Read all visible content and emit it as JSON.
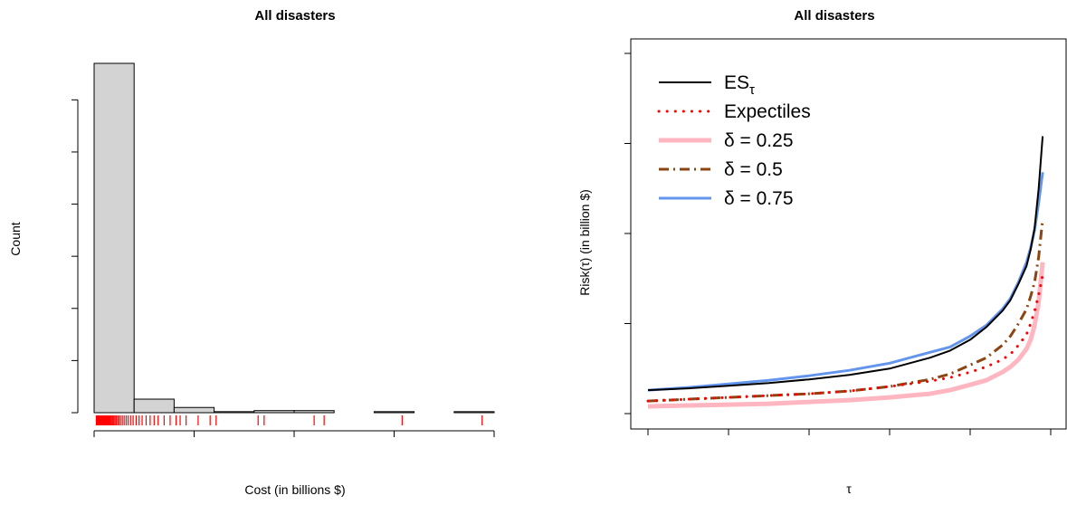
{
  "chart_data": [
    {
      "type": "bar",
      "title": "All disasters",
      "xlabel": "Cost (in billions $)",
      "ylabel": "Count",
      "xlim": [
        0,
        200
      ],
      "ylim": [
        0,
        335
      ],
      "x_ticks": [
        "0",
        "50",
        "100",
        "150",
        "200"
      ],
      "y_ticks": [
        "0",
        "50",
        "100",
        "150",
        "200",
        "250",
        "300"
      ],
      "bins": [
        {
          "from": 0,
          "to": 20,
          "count": 335
        },
        {
          "from": 20,
          "to": 40,
          "count": 13
        },
        {
          "from": 40,
          "to": 60,
          "count": 5
        },
        {
          "from": 60,
          "to": 80,
          "count": 1
        },
        {
          "from": 80,
          "to": 100,
          "count": 2
        },
        {
          "from": 100,
          "to": 120,
          "count": 2
        },
        {
          "from": 120,
          "to": 140,
          "count": 0
        },
        {
          "from": 140,
          "to": 160,
          "count": 1
        },
        {
          "from": 160,
          "to": 180,
          "count": 0
        },
        {
          "from": 180,
          "to": 200,
          "count": 1
        }
      ],
      "bar_color": "#d3d3d3",
      "rug_color": "#ff0000",
      "rug": [
        1.1,
        1.4,
        1.7,
        2.0,
        2.2,
        2.5,
        2.8,
        3.0,
        3.3,
        3.6,
        3.9,
        4.2,
        4.5,
        4.8,
        5.1,
        5.4,
        5.8,
        6.1,
        6.5,
        6.9,
        7.3,
        7.7,
        8.2,
        8.7,
        9.2,
        9.8,
        10.4,
        11.0,
        11.7,
        12.4,
        13.2,
        14.1,
        15.0,
        16.0,
        17.0,
        18.2,
        19.5,
        21.0,
        22.5,
        24.0,
        26.0,
        28.0,
        30.0,
        32.0,
        35.0,
        38.0,
        41.0,
        43.0,
        46.0,
        52.0,
        58.0,
        61.0,
        82.0,
        85.0,
        110.0,
        115.0,
        154.0,
        194.0
      ]
    },
    {
      "type": "line",
      "title": "All disasters",
      "xlabel": "τ",
      "ylabel": "Risk(τ) (in billion $)",
      "xlim": [
        0.5,
        1.0
      ],
      "ylim": [
        0,
        200
      ],
      "x_ticks": [
        "0.5",
        "0.6",
        "0.7",
        "0.8",
        "0.9",
        "1.0"
      ],
      "y_ticks": [
        "0",
        "50",
        "100",
        "150",
        "200"
      ],
      "legend_position": "top-left",
      "x": [
        0.5,
        0.55,
        0.6,
        0.65,
        0.7,
        0.75,
        0.8,
        0.85,
        0.875,
        0.9,
        0.92,
        0.94,
        0.95,
        0.96,
        0.97,
        0.975,
        0.98,
        0.985,
        0.99
      ],
      "series": [
        {
          "name": "ES",
          "name_sub": "τ",
          "color": "#000000",
          "style": "solid",
          "values": [
            13,
            14,
            15.5,
            17,
            19,
            21.5,
            25,
            31,
            35,
            41,
            48,
            57,
            63,
            72,
            82,
            91,
            103,
            125,
            154
          ]
        },
        {
          "name": "Expectiles",
          "color": "#ff0000",
          "style": "dotted",
          "values": [
            7,
            8,
            9,
            10,
            11,
            12.5,
            15,
            18,
            20,
            23,
            26,
            30,
            33,
            38,
            44,
            50,
            57,
            66,
            77
          ]
        },
        {
          "name": "δ = 0.25",
          "color": "#ffb6c1",
          "style": "solid-thick",
          "values": [
            4,
            4.5,
            5,
            5.5,
            6.5,
            7.5,
            9,
            11,
            13,
            16,
            18.5,
            23,
            26,
            30,
            36,
            41,
            49,
            62,
            84
          ]
        },
        {
          "name": "δ = 0.5",
          "color": "#8b4513",
          "style": "dashdot",
          "values": [
            7,
            8,
            9,
            10,
            11,
            12.5,
            15,
            19,
            22,
            27,
            31,
            38,
            43,
            50,
            58,
            65,
            73,
            87,
            108
          ]
        },
        {
          "name": "δ = 0.75",
          "color": "#6495ed",
          "style": "solid",
          "values": [
            13,
            14.5,
            16.5,
            18.5,
            21,
            24,
            28,
            34,
            37,
            43,
            49,
            58,
            64,
            73,
            84,
            92,
            102,
            117,
            134
          ]
        }
      ]
    }
  ]
}
